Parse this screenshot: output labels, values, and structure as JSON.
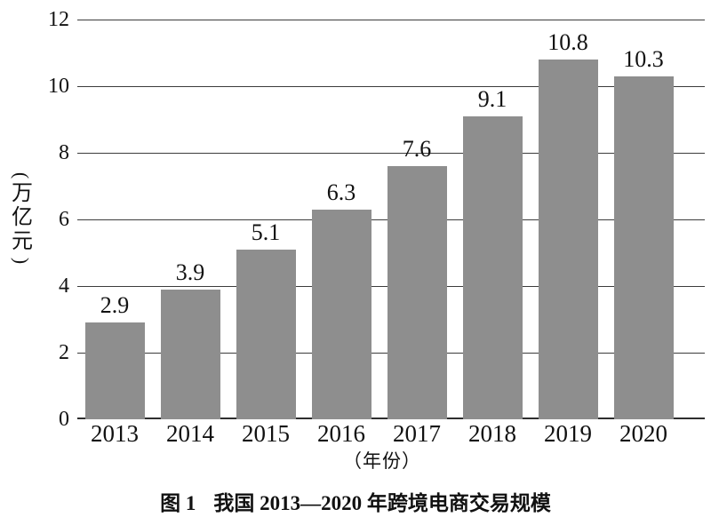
{
  "chart_data": {
    "type": "bar",
    "title": "图 1 我国 2013—2020 年跨境电商交易规模",
    "caption_label": "图 1",
    "caption_text": "我国 2013—2020 年跨境电商交易规模",
    "categories": [
      "2013",
      "2014",
      "2015",
      "2016",
      "2017",
      "2018",
      "2019",
      "2020"
    ],
    "values": [
      2.9,
      3.9,
      5.1,
      6.3,
      7.6,
      9.1,
      10.8,
      10.3
    ],
    "data_labels": [
      "2.9",
      "3.9",
      "5.1",
      "6.3",
      "7.6",
      "9.1",
      "10.8",
      "10.3"
    ],
    "xlabel": "（年份）",
    "ylabel": "（万亿元）",
    "ylabel_chars": [
      "万",
      "亿",
      "元"
    ],
    "ylim": [
      0,
      12
    ],
    "yticks": [
      0,
      2,
      4,
      6,
      8,
      10,
      12
    ],
    "grid": true,
    "legend": "none",
    "bar_color": "#8e8e8e",
    "grid_color": "#3c3c3c",
    "axis_color": "#2e2e2e",
    "text_color": "#111111"
  }
}
